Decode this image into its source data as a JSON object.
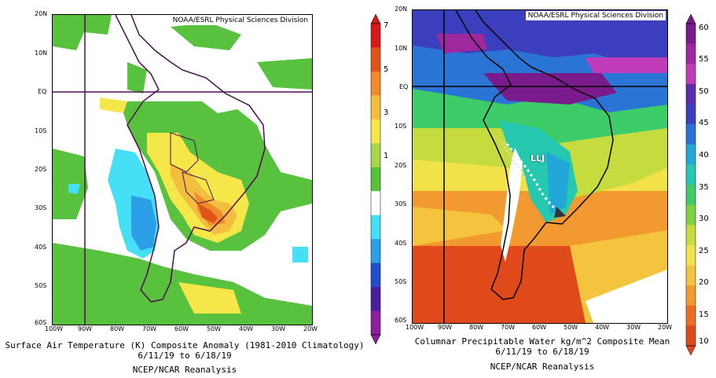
{
  "left_panel": {
    "credit": "NOAA/ESRL Physical Sciences Division",
    "lat_labels": [
      "20N",
      "10N",
      "EQ",
      "10S",
      "20S",
      "30S",
      "40S",
      "50S",
      "60S"
    ],
    "lon_labels": [
      "100W",
      "90W",
      "80W",
      "70W",
      "60W",
      "50W",
      "40W",
      "30W",
      "20W"
    ],
    "caption_line1": "Surface Air Temperature (K) Composite Anomaly (1981-2010 Climatology)",
    "caption_line2": "6/11/19  to 6/18/19",
    "caption_line3": "NCEP/NCAR Reanalysis",
    "colorbar_labels": [
      "7",
      "5",
      "3",
      "1"
    ],
    "colorbar_colors": [
      "#d7191c",
      "#e0541a",
      "#f08c2a",
      "#f3be3f",
      "#f5e64a",
      "#a8d84a",
      "#58c13e",
      "#ffffff",
      "#45e0f5",
      "#2b9fe8",
      "#214fcc",
      "#4b1e9e",
      "#8a1fa0"
    ]
  },
  "right_panel": {
    "credit": "NOAA/ESRL Physical Sciences Division",
    "lat_labels": [
      "20N",
      "10N",
      "EQ",
      "10S",
      "20S",
      "30S",
      "40S",
      "50S",
      "60S"
    ],
    "lon_labels": [
      "100W",
      "90W",
      "80W",
      "70W",
      "60W",
      "50W",
      "40W",
      "30W",
      "20W"
    ],
    "annotation": "LLJ",
    "caption_line1": "Columnar Precipitable Water kg/m^2 Composite Mean",
    "caption_line2": "6/11/19  to 6/18/19",
    "caption_line3": "NCEP/NCAR Reanalysis",
    "colorbar_labels": [
      "60",
      "55",
      "50",
      "45",
      "40",
      "35",
      "30",
      "25",
      "20",
      "15",
      "10"
    ],
    "colorbar_colors": [
      "#7a1b8c",
      "#a0289e",
      "#c03cb8",
      "#5e2cb0",
      "#3b3fbe",
      "#2a74d6",
      "#21a8d8",
      "#26c8b0",
      "#3ecb6a",
      "#80d042",
      "#c6dc3e",
      "#f1e24a",
      "#f4c43e",
      "#f29a30",
      "#ea6e22",
      "#e04a1a"
    ]
  }
}
